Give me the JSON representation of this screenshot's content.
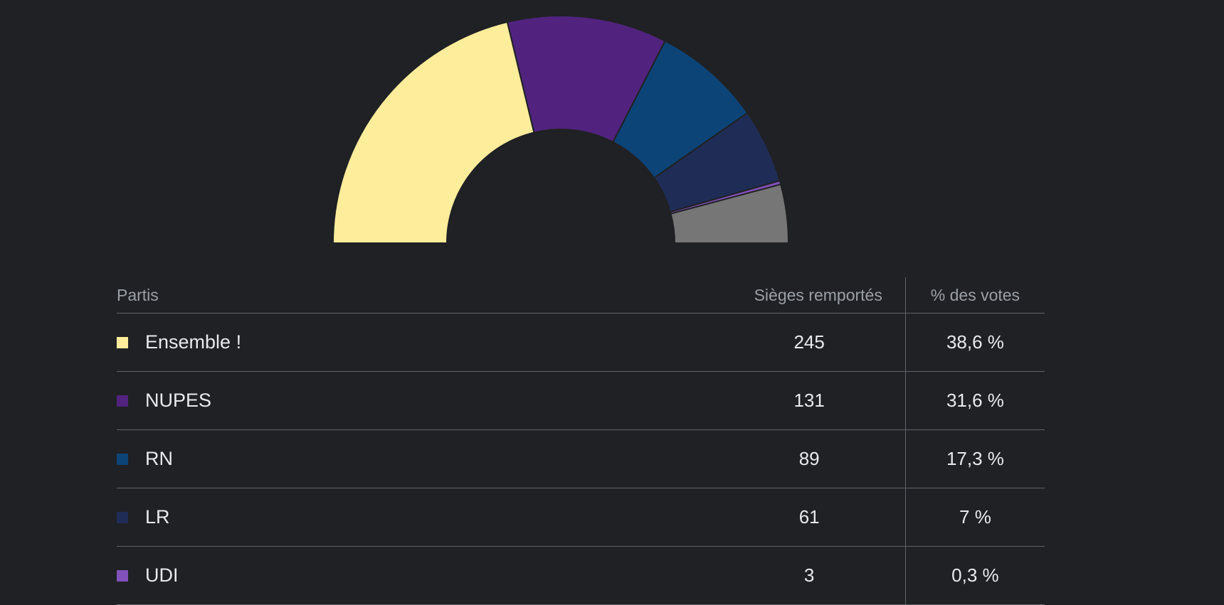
{
  "chart_data": {
    "type": "pie",
    "subtype": "half-donut",
    "series": [
      {
        "label": "Ensemble !",
        "value": 245,
        "color": "#feed9b"
      },
      {
        "label": "NUPES",
        "value": 131,
        "color": "#51237f"
      },
      {
        "label": "RN",
        "value": 89,
        "color": "#0d4478"
      },
      {
        "label": "LR",
        "value": 61,
        "color": "#1f2d56"
      },
      {
        "label": "UDI",
        "value": 3,
        "color": "#8351ba"
      },
      {
        "label": "",
        "value": 48,
        "color": "#767676"
      }
    ]
  },
  "table": {
    "headers": {
      "party": "Partis",
      "seats": "Sièges remportés",
      "votes": "% des votes"
    },
    "rows": [
      {
        "name": "Ensemble !",
        "seats": "245",
        "votes": "38,6 %",
        "color": "#feed9b"
      },
      {
        "name": "NUPES",
        "seats": "131",
        "votes": "31,6 %",
        "color": "#51237f"
      },
      {
        "name": "RN",
        "seats": "89",
        "votes": "17,3 %",
        "color": "#0d4478"
      },
      {
        "name": "LR",
        "seats": "61",
        "votes": "7 %",
        "color": "#1f2d56"
      },
      {
        "name": "UDI",
        "seats": "3",
        "votes": "0,3 %",
        "color": "#8351ba"
      }
    ]
  }
}
